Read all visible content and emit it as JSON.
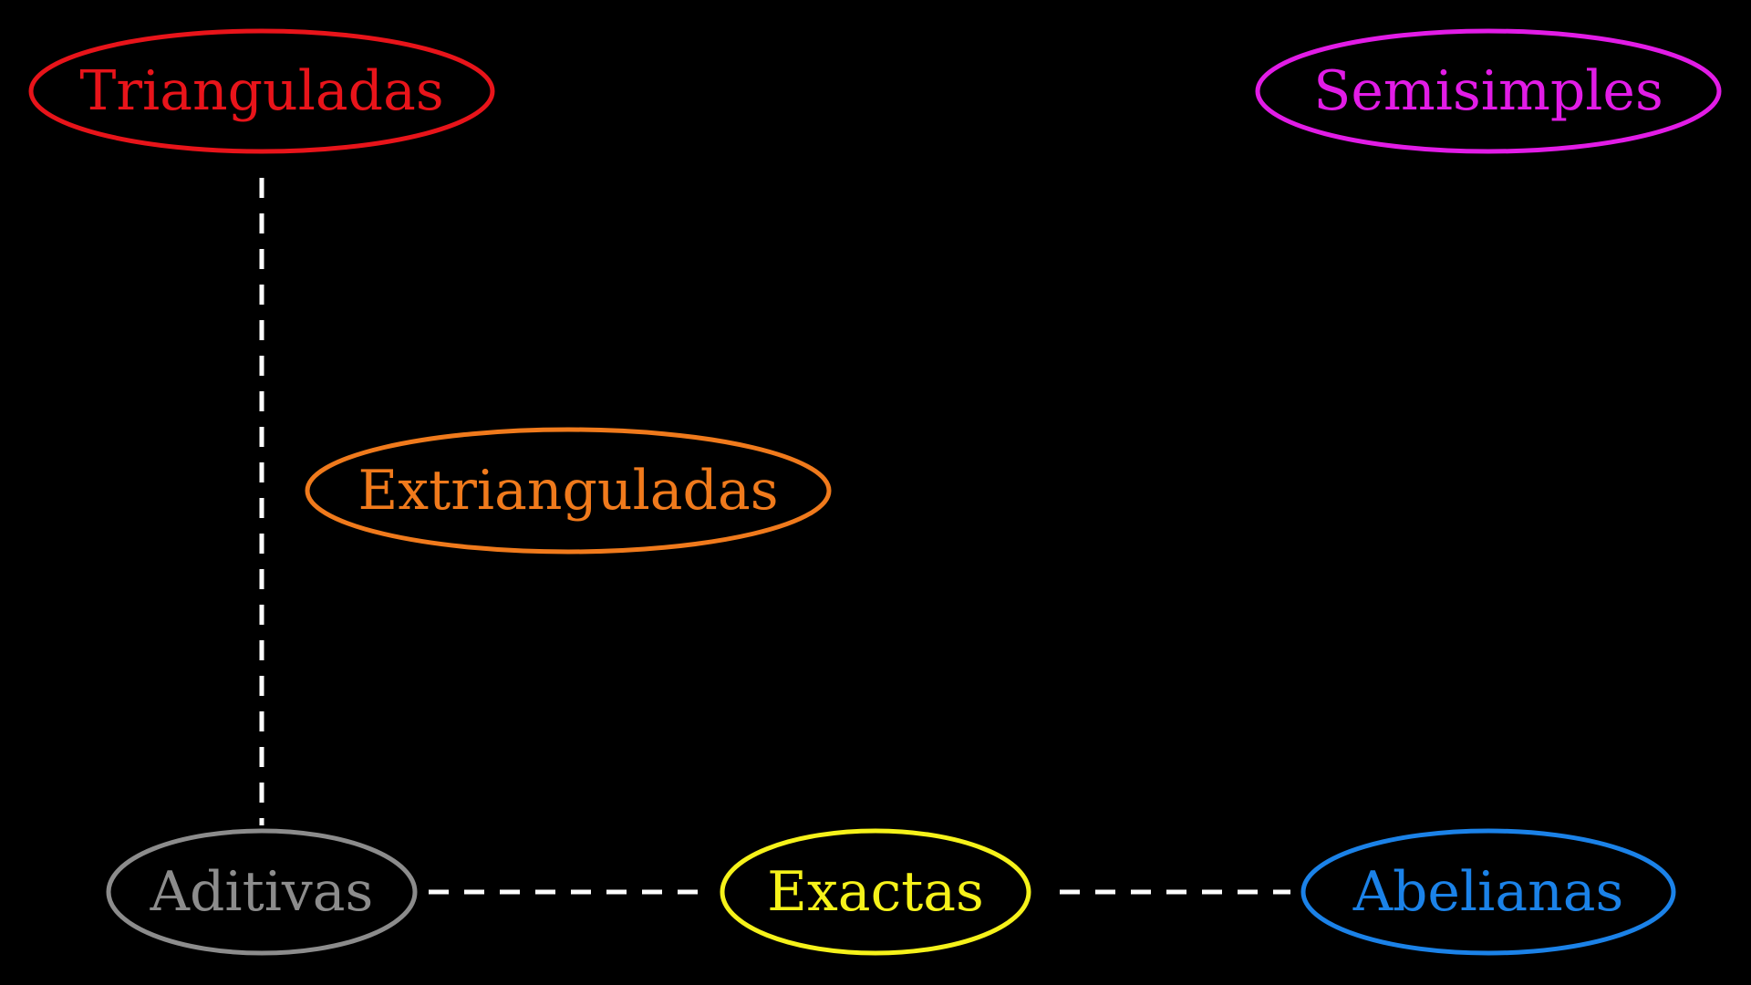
{
  "nodes": {
    "trianguladas": {
      "label": "Trianguladas",
      "color": "#e8141a"
    },
    "semisimples": {
      "label": "Semisimples",
      "color": "#e21ce6"
    },
    "extrianguladas": {
      "label": "Extrianguladas",
      "color": "#f07a1c"
    },
    "aditivas": {
      "label": "Aditivas",
      "color": "#8c8c8c"
    },
    "exactas": {
      "label": "Exactas",
      "color": "#f6f21a"
    },
    "abelianas": {
      "label": "Abelianas",
      "color": "#1b82e8"
    }
  },
  "edges": [
    {
      "from": "trianguladas",
      "to": "aditivas",
      "style": "dashed",
      "color": "#ffffff"
    },
    {
      "from": "aditivas",
      "to": "exactas",
      "style": "dashed",
      "color": "#ffffff"
    },
    {
      "from": "exactas",
      "to": "abelianas",
      "style": "dashed",
      "color": "#ffffff"
    }
  ]
}
